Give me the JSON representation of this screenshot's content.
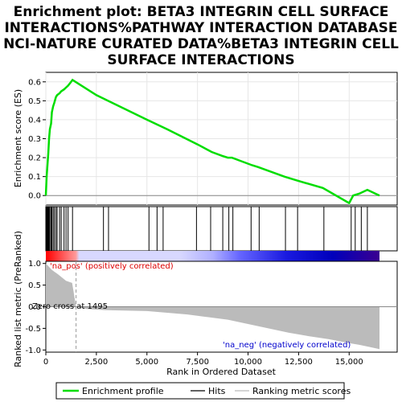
{
  "title_lines": [
    "Enrichment plot: BETA3 INTEGRIN CELL SURFACE",
    "INTERACTIONS%PATHWAY INTERACTION DATABASE",
    "NCI-NATURE CURATED DATA%BETA3 INTEGRIN CELL",
    "SURFACE INTERACTIONS"
  ],
  "es_ylabel": "Enrichment score (ES)",
  "metric_ylabel_lines": [
    "Ranked list metric (PreRanked)"
  ],
  "xlabel": "Rank in Ordered Dataset",
  "annotations": {
    "pos": "'na_pos' (positively correlated)",
    "neg": "'na_neg' (negatively correlated)",
    "zero_cross": "Zero cross at 1495"
  },
  "legend": {
    "profile": "Enrichment profile",
    "hits": "Hits",
    "metric": "Ranking metric scores"
  },
  "colors": {
    "profile": "#00dd00",
    "hits": "#000000",
    "metric": "#bbbbbb",
    "pos_text": "#dd0000",
    "neg_text": "#0000cc"
  },
  "chart_data": {
    "type": "line",
    "x_range": [
      0,
      16500
    ],
    "x_ticks": [
      0,
      2500,
      5000,
      7500,
      10000,
      12500,
      15000
    ],
    "x_tick_labels": [
      "0",
      "2,500",
      "5,000",
      "7,500",
      "10,000",
      "12,500",
      "15,000"
    ],
    "es_ylim": [
      -0.05,
      0.65
    ],
    "es_ticks": [
      0.0,
      0.1,
      0.2,
      0.3,
      0.4,
      0.5,
      0.6
    ],
    "es_tick_labels": [
      "0.0",
      "0.1",
      "0.2",
      "0.3",
      "0.4",
      "0.5",
      "0.6"
    ],
    "metric_ylim": [
      -1.05,
      1.05
    ],
    "metric_ticks": [
      1.0,
      0.5,
      0.0,
      -0.5,
      -1.0
    ],
    "metric_tick_labels": [
      "1.0",
      "0.5",
      "0.0",
      "-0.5",
      "-1.0"
    ],
    "zero_cross": 1495,
    "es_profile": {
      "x": [
        0,
        40,
        80,
        120,
        160,
        200,
        260,
        300,
        360,
        420,
        500,
        560,
        680,
        760,
        900,
        1000,
        1100,
        1250,
        1320,
        2500,
        5000,
        6000,
        7500,
        8200,
        8700,
        9000,
        9200,
        10200,
        10500,
        11800,
        12400,
        13700,
        15000,
        15200,
        15500,
        15900,
        16500
      ],
      "y": [
        0.0,
        0.1,
        0.16,
        0.22,
        0.3,
        0.35,
        0.38,
        0.44,
        0.47,
        0.49,
        0.52,
        0.53,
        0.54,
        0.55,
        0.56,
        0.57,
        0.58,
        0.6,
        0.61,
        0.53,
        0.4,
        0.35,
        0.27,
        0.23,
        0.21,
        0.2,
        0.2,
        0.16,
        0.15,
        0.1,
        0.08,
        0.04,
        -0.04,
        0.0,
        0.01,
        0.03,
        0.0
      ]
    },
    "hits": [
      10,
      40,
      80,
      120,
      160,
      200,
      260,
      300,
      360,
      420,
      500,
      560,
      680,
      760,
      900,
      1000,
      1100,
      1320,
      2850,
      3100,
      5100,
      5500,
      5800,
      7450,
      8150,
      8750,
      9050,
      9250,
      10150,
      10550,
      11850,
      12450,
      13750,
      15100,
      15300,
      15600,
      15900
    ],
    "metric": {
      "x": [
        0,
        100,
        300,
        600,
        1000,
        1300,
        1495,
        2000,
        3000,
        5000,
        6000,
        7000,
        8000,
        9000,
        10000,
        11000,
        12000,
        13000,
        14000,
        15000,
        15500,
        16000,
        16500
      ],
      "y": [
        1.0,
        0.95,
        0.85,
        0.75,
        0.6,
        0.55,
        0.0,
        -0.05,
        -0.08,
        -0.1,
        -0.14,
        -0.18,
        -0.24,
        -0.3,
        -0.4,
        -0.5,
        -0.6,
        -0.68,
        -0.75,
        -0.84,
        -0.88,
        -0.93,
        -0.98
      ]
    }
  }
}
